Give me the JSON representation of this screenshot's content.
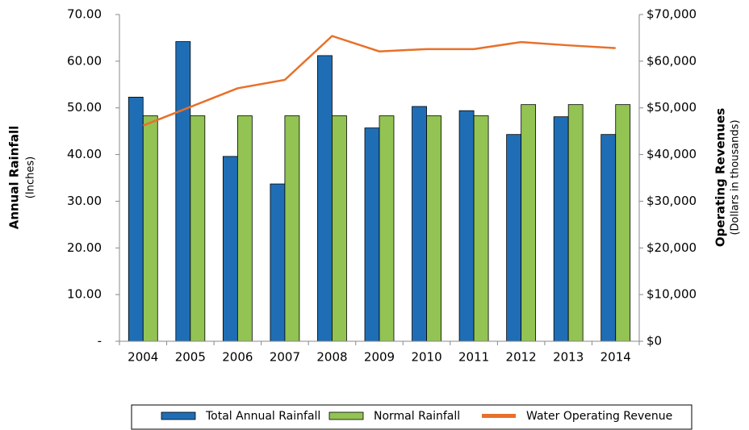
{
  "chart_data": {
    "type": "bar",
    "ylabel": "Annual Rainfall",
    "ylabel_sub": "(Inches)",
    "y2label": "Operating Revenues",
    "y2label_sub": "(Dollars in thousands)",
    "categories": [
      "2004",
      "2005",
      "2006",
      "2007",
      "2008",
      "2009",
      "2010",
      "2011",
      "2012",
      "2013",
      "2014"
    ],
    "series": [
      {
        "name": "Total Annual Rainfall",
        "type": "bar",
        "color": "#1f6eb5",
        "values": [
          52.3,
          64.2,
          39.6,
          33.7,
          61.2,
          45.7,
          50.3,
          49.4,
          44.3,
          48.1,
          44.3
        ]
      },
      {
        "name": "Normal Rainfall",
        "type": "bar",
        "color": "#92c353",
        "values": [
          48.3,
          48.3,
          48.3,
          48.3,
          48.3,
          48.3,
          48.3,
          48.3,
          50.7,
          50.7,
          50.7
        ]
      },
      {
        "name": "Water Operating Revenue",
        "type": "line",
        "axis": "y2",
        "color": "#e8702a",
        "values": [
          46200,
          50200,
          54200,
          56000,
          65400,
          62100,
          62600,
          62600,
          64100,
          63400,
          62800
        ]
      }
    ],
    "ylim": [
      0,
      70
    ],
    "yticks": [
      {
        "value": 0,
        "label": "-"
      },
      {
        "value": 10,
        "label": "10.00"
      },
      {
        "value": 20,
        "label": "20.00"
      },
      {
        "value": 30,
        "label": "30.00"
      },
      {
        "value": 40,
        "label": "40.00"
      },
      {
        "value": 50,
        "label": "50.00"
      },
      {
        "value": 60,
        "label": "60.00"
      },
      {
        "value": 70,
        "label": "70.00"
      }
    ],
    "y2lim": [
      0,
      70000
    ],
    "y2ticks": [
      {
        "value": 0,
        "label": "$0"
      },
      {
        "value": 10000,
        "label": "$10,000"
      },
      {
        "value": 20000,
        "label": "$20,000"
      },
      {
        "value": 30000,
        "label": "$30,000"
      },
      {
        "value": 40000,
        "label": "$40,000"
      },
      {
        "value": 50000,
        "label": "$50,000"
      },
      {
        "value": 60000,
        "label": "$60,000"
      },
      {
        "value": 70000,
        "label": "$70,000"
      }
    ],
    "grid": false,
    "legend": "bottom"
  }
}
